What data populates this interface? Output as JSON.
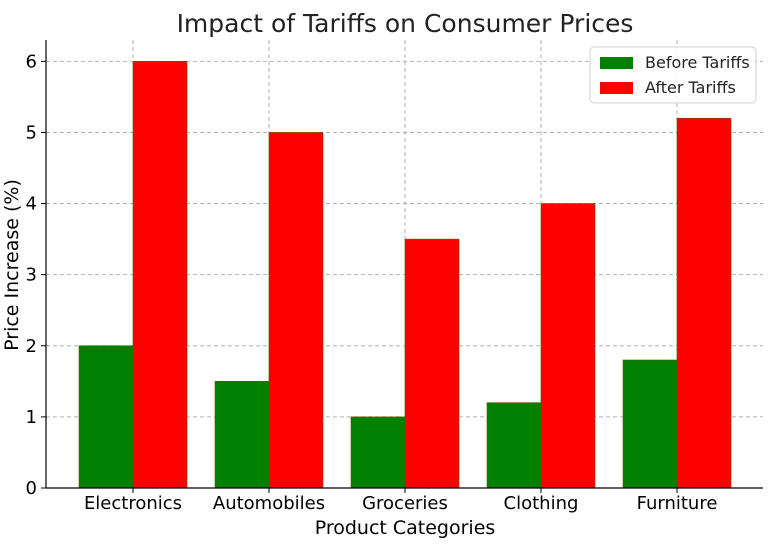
{
  "chart_data": {
    "type": "bar",
    "title": "Impact of Tariffs on Consumer Prices",
    "xlabel": "Product Categories",
    "ylabel": "Price Increase (%)",
    "categories": [
      "Electronics",
      "Automobiles",
      "Groceries",
      "Clothing",
      "Furniture"
    ],
    "series": [
      {
        "name": "Before Tariffs",
        "color": "#008000",
        "values": [
          2,
          1.5,
          1,
          1.2,
          1.8
        ]
      },
      {
        "name": "After Tariffs",
        "color": "#ff0000",
        "values": [
          6,
          5,
          3.5,
          4,
          5.2
        ]
      }
    ],
    "ylim": [
      0,
      6.3
    ],
    "yticks": [
      0,
      1,
      2,
      3,
      4,
      5,
      6
    ],
    "grid": true,
    "legend_position": "top-right"
  }
}
